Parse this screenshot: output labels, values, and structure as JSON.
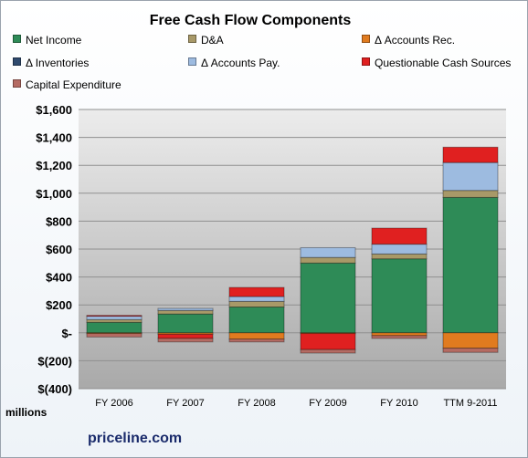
{
  "chart_data": {
    "type": "bar",
    "stacked": true,
    "title": "Free Cash Flow Components",
    "ylabel": "millions",
    "ylim": [
      -400,
      1600
    ],
    "yticks": [
      -400,
      -200,
      0,
      200,
      400,
      600,
      800,
      1000,
      1200,
      1400,
      1600
    ],
    "ytick_labels": [
      "$(400)",
      "$(200)",
      "$-",
      "$200",
      "$400",
      "$600",
      "$800",
      "$1,000",
      "$1,200",
      "$1,400",
      "$1,600"
    ],
    "categories": [
      "FY 2006",
      "FY 2007",
      "FY 2008",
      "FY 2009",
      "FY 2010",
      "TTM 9-2011"
    ],
    "legend_position": "top",
    "grid": true,
    "series": [
      {
        "name": "Net Income",
        "color": "#2e8b57",
        "values": [
          75,
          135,
          185,
          500,
          530,
          970
        ]
      },
      {
        "name": "D&A",
        "color": "#a89968",
        "values": [
          20,
          25,
          40,
          40,
          35,
          50
        ]
      },
      {
        "name": "Δ Accounts Rec.",
        "color": "#e07b1f",
        "values": [
          -5,
          -10,
          -45,
          -5,
          -20,
          -110
        ]
      },
      {
        "name": "Δ Inventories",
        "color": "#2f4a6e",
        "values": [
          0,
          0,
          0,
          0,
          0,
          0
        ]
      },
      {
        "name": "Δ Accounts Pay.",
        "color": "#9dbbe0",
        "values": [
          25,
          15,
          35,
          70,
          70,
          200
        ]
      },
      {
        "name": "Questionable Cash Sources",
        "color": "#e02020",
        "values": [
          5,
          -30,
          65,
          -115,
          115,
          110
        ]
      },
      {
        "name": "Capital Expenditure",
        "color": "#b56b63",
        "values": [
          -25,
          -25,
          -20,
          -25,
          -20,
          -30
        ]
      }
    ]
  },
  "branding": {
    "text": "priceline.com"
  }
}
